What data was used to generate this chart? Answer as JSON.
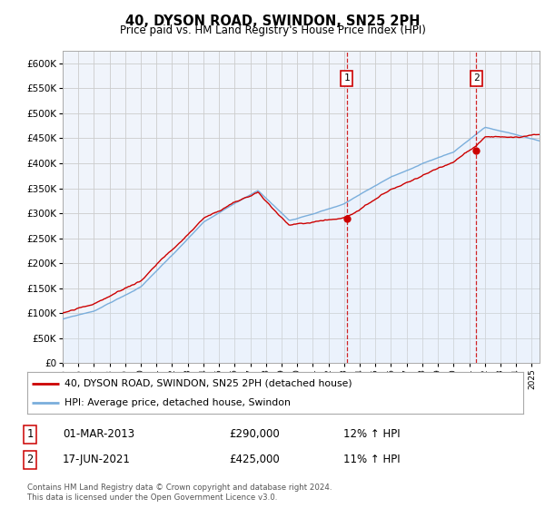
{
  "title": "40, DYSON ROAD, SWINDON, SN25 2PH",
  "subtitle": "Price paid vs. HM Land Registry's House Price Index (HPI)",
  "ytick_vals": [
    0,
    50000,
    100000,
    150000,
    200000,
    250000,
    300000,
    350000,
    400000,
    450000,
    500000,
    550000,
    600000
  ],
  "ylim": [
    0,
    625000
  ],
  "x_start_year": 1995,
  "x_end_year": 2026,
  "purchase1_year": 2013.17,
  "purchase1_price": 290000,
  "purchase2_year": 2021.46,
  "purchase2_price": 425000,
  "red_color": "#cc0000",
  "blue_color": "#7aaedc",
  "blue_fill_color": "#ddeeff",
  "grid_color": "#cccccc",
  "background_color": "#ffffff",
  "plot_bg_color": "#f0f4fb",
  "legend_label_red": "40, DYSON ROAD, SWINDON, SN25 2PH (detached house)",
  "legend_label_blue": "HPI: Average price, detached house, Swindon",
  "footnote": "Contains HM Land Registry data © Crown copyright and database right 2024.\nThis data is licensed under the Open Government Licence v3.0."
}
